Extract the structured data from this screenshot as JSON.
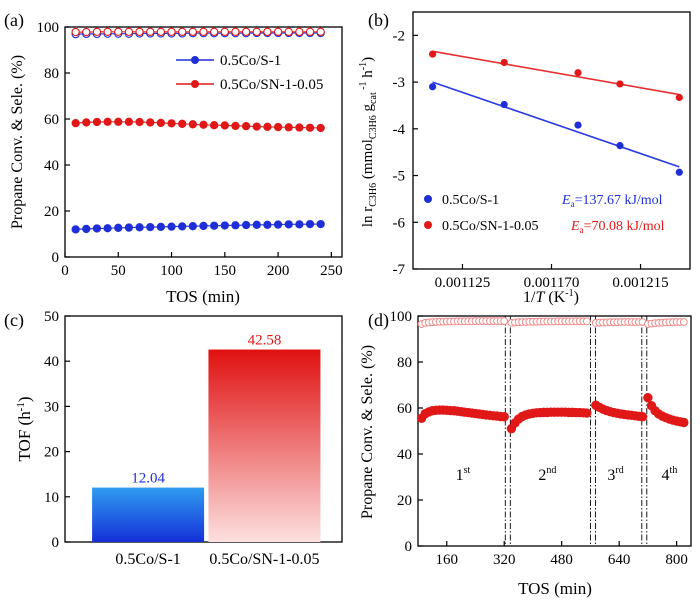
{
  "colors": {
    "blue": "#1f2fd8",
    "red": "#e01818",
    "pink": "#f08a8a",
    "axis": "#000000",
    "line_blue": "#2a3be0",
    "line_red": "#e83030"
  },
  "chart_data": [
    {
      "panel": "(a)",
      "type": "scatter",
      "xlabel": "TOS (min)",
      "ylabel": "Propane Conv. & Sele. (%)",
      "xlim": [
        0,
        260
      ],
      "ylim": [
        0,
        100
      ],
      "xticks": [
        "0",
        "50",
        "100",
        "150",
        "200",
        "250"
      ],
      "yticks": [
        "0",
        "20",
        "40",
        "60",
        "80",
        "100"
      ],
      "legend": [
        "0.5Co/S-1",
        "0.5Co/SN-1-0.05"
      ],
      "legend_position": "top-right",
      "x": [
        10,
        20,
        30,
        40,
        50,
        60,
        70,
        80,
        90,
        100,
        110,
        120,
        130,
        140,
        150,
        160,
        170,
        180,
        190,
        200,
        210,
        220,
        230,
        240
      ],
      "series": [
        {
          "name": "0.5Co/S-1",
          "role": "conversion",
          "values": [
            12.0,
            12.2,
            12.4,
            12.5,
            12.7,
            12.8,
            12.9,
            13.0,
            13.1,
            13.2,
            13.3,
            13.4,
            13.5,
            13.6,
            13.7,
            13.8,
            13.9,
            14.0,
            14.0,
            14.1,
            14.2,
            14.2,
            14.3,
            14.3
          ]
        },
        {
          "name": "0.5Co/S-1",
          "role": "selectivity",
          "values": [
            96.9,
            97.0,
            97.0,
            97.1,
            97.1,
            97.1,
            97.2,
            97.2,
            97.2,
            97.2,
            97.2,
            97.3,
            97.3,
            97.3,
            97.3,
            97.3,
            97.3,
            97.4,
            97.4,
            97.4,
            97.4,
            97.4,
            97.4,
            97.4
          ]
        },
        {
          "name": "0.5Co/SN-1-0.05",
          "role": "conversion",
          "values": [
            58.2,
            58.5,
            58.7,
            58.8,
            58.8,
            58.8,
            58.7,
            58.5,
            58.3,
            58.1,
            57.9,
            57.7,
            57.5,
            57.3,
            57.2,
            57.0,
            56.9,
            56.7,
            56.6,
            56.5,
            56.4,
            56.3,
            56.2,
            56.1
          ]
        },
        {
          "name": "0.5Co/SN-1-0.05",
          "role": "selectivity",
          "values": [
            97.8,
            97.8,
            97.9,
            97.9,
            97.9,
            97.9,
            97.9,
            97.9,
            97.9,
            97.9,
            97.9,
            97.9,
            97.9,
            97.9,
            97.9,
            97.9,
            97.9,
            97.9,
            97.9,
            97.9,
            97.9,
            97.9,
            97.9,
            97.9
          ]
        }
      ]
    },
    {
      "panel": "(b)",
      "type": "scatter",
      "xlabel": "1/T (K⁻¹)",
      "ylabel": "ln r(C3H6) (mmol(C3H6) g(cat)⁻¹ h⁻¹)",
      "xlim": [
        0.0011,
        0.00124
      ],
      "ylim": [
        -7,
        -1.5
      ],
      "xticks": [
        "0.001125",
        "0.001170",
        "0.001215"
      ],
      "yticks": [
        "-2",
        "-3",
        "-4",
        "-5",
        "-6",
        "-7"
      ],
      "legend_position": "bottom-left",
      "series": [
        {
          "name": "0.5Co/S-1",
          "x": [
            0.0011099,
            0.0011461,
            0.0011834,
            0.0012046,
            0.0012346
          ],
          "values": [
            -3.1,
            -3.48,
            -3.92,
            -4.36,
            -4.93
          ],
          "annotation_label": "E",
          "annotation_subscript": "a",
          "annotation_value": "=137.67 kJ/mol"
        },
        {
          "name": "0.5Co/SN-1-0.05",
          "x": [
            0.0011099,
            0.0011461,
            0.0011834,
            0.0012046,
            0.0012346
          ],
          "values": [
            -2.4,
            -2.58,
            -2.8,
            -3.04,
            -3.33
          ],
          "annotation_label": "E",
          "annotation_subscript": "a",
          "annotation_value": "=70.08 kJ/mol"
        }
      ]
    },
    {
      "panel": "(c)",
      "type": "bar",
      "ylabel": "TOF (h⁻¹)",
      "ylim": [
        0,
        50
      ],
      "yticks": [
        "0",
        "10",
        "20",
        "30",
        "40",
        "50"
      ],
      "categories": [
        "0.5Co/S-1",
        "0.5Co/SN-1-0.05"
      ],
      "values": [
        12.04,
        42.58
      ],
      "data_labels": [
        "12.04",
        "42.58"
      ]
    },
    {
      "panel": "(d)",
      "type": "scatter",
      "xlabel": "TOS (min)",
      "ylabel": "Propane Conv. & Sele. (%)",
      "xlim": [
        80,
        840
      ],
      "ylim": [
        0,
        100
      ],
      "xticks": [
        "160",
        "320",
        "480",
        "640",
        "800"
      ],
      "yticks": [
        "0",
        "20",
        "40",
        "60",
        "80",
        "100"
      ],
      "cycle_boundaries": [
        330,
        567,
        710
      ],
      "cycle_labels": [
        {
          "n": "1",
          "sup": "st",
          "x": 205
        },
        {
          "n": "2",
          "sup": "nd",
          "x": 440
        },
        {
          "n": "3",
          "sup": "rd",
          "x": 630
        },
        {
          "n": "4",
          "sup": "th",
          "x": 780
        }
      ],
      "series": [
        {
          "name": "cycle 1 conversion",
          "x": [
            90,
            100,
            110,
            120,
            130,
            140,
            150,
            160,
            170,
            180,
            190,
            200,
            210,
            220,
            230,
            240,
            250,
            260,
            270,
            280,
            290,
            300,
            310,
            320
          ],
          "values": [
            55.5,
            57.5,
            58.3,
            58.8,
            59.0,
            59.1,
            59.1,
            59.0,
            58.9,
            58.8,
            58.6,
            58.4,
            58.2,
            58.0,
            57.8,
            57.6,
            57.4,
            57.2,
            57.0,
            56.8,
            56.6,
            56.5,
            56.3,
            56.2
          ]
        },
        {
          "name": "cycle 1 selectivity",
          "x": [
            90,
            100,
            110,
            120,
            130,
            140,
            150,
            160,
            170,
            180,
            190,
            200,
            210,
            220,
            230,
            240,
            250,
            260,
            270,
            280,
            290,
            300,
            310,
            320
          ],
          "values": [
            96.5,
            97.0,
            97.2,
            97.3,
            97.4,
            97.5,
            97.5,
            97.6,
            97.6,
            97.6,
            97.7,
            97.7,
            97.7,
            97.7,
            97.7,
            97.8,
            97.8,
            97.8,
            97.8,
            97.8,
            97.8,
            97.8,
            97.8,
            97.8
          ]
        },
        {
          "name": "cycle 2 conversion",
          "x": [
            340,
            350,
            360,
            370,
            380,
            390,
            400,
            410,
            420,
            430,
            440,
            450,
            460,
            470,
            480,
            490,
            500,
            510,
            520,
            530,
            540,
            550
          ],
          "values": [
            51.0,
            53.5,
            55.2,
            56.3,
            57.0,
            57.4,
            57.7,
            57.9,
            58.0,
            58.1,
            58.1,
            58.2,
            58.2,
            58.2,
            58.2,
            58.2,
            58.1,
            58.1,
            58.0,
            58.0,
            57.9,
            57.8
          ]
        },
        {
          "name": "cycle 2 selectivity",
          "x": [
            340,
            350,
            360,
            370,
            380,
            390,
            400,
            410,
            420,
            430,
            440,
            450,
            460,
            470,
            480,
            490,
            500,
            510,
            520,
            530,
            540,
            550
          ],
          "values": [
            97.0,
            97.2,
            97.3,
            97.4,
            97.4,
            97.5,
            97.5,
            97.5,
            97.6,
            97.6,
            97.6,
            97.6,
            97.6,
            97.7,
            97.7,
            97.7,
            97.7,
            97.7,
            97.7,
            97.7,
            97.7,
            97.7
          ]
        },
        {
          "name": "cycle 3 conversion",
          "x": [
            575,
            585,
            595,
            605,
            615,
            625,
            635,
            645,
            655,
            665,
            675,
            685,
            695,
            705
          ],
          "values": [
            61.2,
            60.3,
            59.5,
            58.9,
            58.4,
            58.0,
            57.7,
            57.4,
            57.2,
            57.0,
            56.8,
            56.6,
            56.4,
            56.2
          ]
        },
        {
          "name": "cycle 3 selectivity",
          "x": [
            575,
            585,
            595,
            605,
            615,
            625,
            635,
            645,
            655,
            665,
            675,
            685,
            695,
            705
          ],
          "values": [
            97.0,
            97.1,
            97.2,
            97.2,
            97.3,
            97.3,
            97.3,
            97.4,
            97.4,
            97.4,
            97.4,
            97.4,
            97.4,
            97.4
          ]
        },
        {
          "name": "cycle 4 conversion",
          "x": [
            720,
            730,
            740,
            750,
            760,
            770,
            780,
            790,
            800,
            810,
            820
          ],
          "values": [
            64.5,
            61.0,
            58.8,
            57.4,
            56.5,
            55.8,
            55.2,
            54.7,
            54.3,
            54.0,
            53.7
          ]
        },
        {
          "name": "cycle 4 selectivity",
          "x": [
            720,
            730,
            740,
            750,
            760,
            770,
            780,
            790,
            800,
            810,
            820
          ],
          "values": [
            96.5,
            96.7,
            96.9,
            97.0,
            97.1,
            97.2,
            97.3,
            97.3,
            97.4,
            97.4,
            97.4
          ]
        }
      ]
    }
  ]
}
